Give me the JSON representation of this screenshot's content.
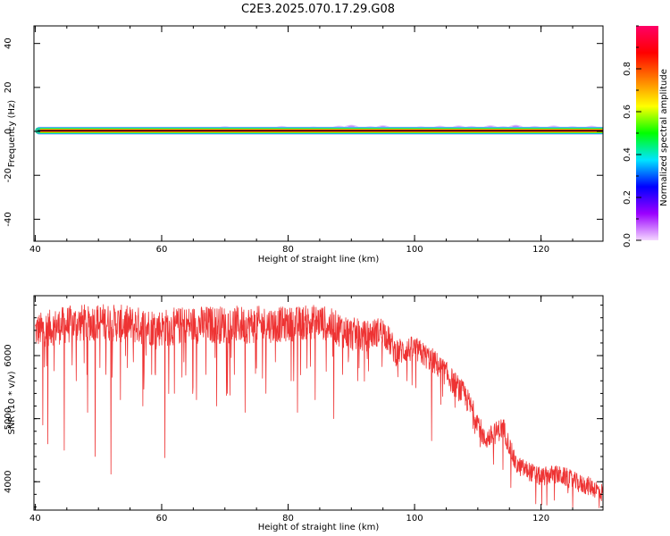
{
  "chart_data": [
    {
      "type": "heatmap",
      "title": "C2E3.2025.070.17.29.G08",
      "xlabel": "Height of straight line (km)",
      "ylabel": "Frequency (Hz)",
      "xlim": [
        39.8,
        129.8
      ],
      "ylim": [
        -50,
        48
      ],
      "xticks": [
        40,
        60,
        80,
        100,
        120
      ],
      "yticks": [
        -40,
        -20,
        0,
        20,
        40
      ],
      "ridge_frequency_hz": 0.3,
      "band_halfwidth_hz": 1.8,
      "noise_blobs": [
        {
          "x": 70,
          "y": 0.6,
          "level": 0.18
        },
        {
          "x": 79,
          "y": 0.7,
          "level": 0.2
        },
        {
          "x": 84,
          "y": 0.4,
          "level": 0.17
        },
        {
          "x": 88,
          "y": 0.8,
          "level": 0.25
        },
        {
          "x": 90,
          "y": 1.2,
          "level": 0.28
        },
        {
          "x": 93,
          "y": 0.6,
          "level": 0.22
        },
        {
          "x": 95,
          "y": 1.0,
          "level": 0.3
        },
        {
          "x": 101,
          "y": 0.5,
          "level": 0.2
        },
        {
          "x": 104,
          "y": 0.8,
          "level": 0.2
        },
        {
          "x": 107,
          "y": 0.9,
          "level": 0.25
        },
        {
          "x": 109,
          "y": 0.7,
          "level": 0.2
        },
        {
          "x": 112,
          "y": 1.0,
          "level": 0.26
        },
        {
          "x": 114,
          "y": 0.6,
          "level": 0.22
        },
        {
          "x": 116,
          "y": 1.2,
          "level": 0.32
        },
        {
          "x": 119,
          "y": 0.7,
          "level": 0.2
        },
        {
          "x": 122,
          "y": 0.9,
          "level": 0.22
        },
        {
          "x": 125,
          "y": 0.6,
          "level": 0.2
        },
        {
          "x": 128,
          "y": 0.8,
          "level": 0.24
        }
      ],
      "colorbar": {
        "label": "Normalized spectral amplitude",
        "range": [
          0,
          1
        ],
        "ticks": [
          0.0,
          0.2,
          0.4,
          0.6,
          0.8
        ],
        "stops": [
          "#f5d7ff",
          "#9b00ff",
          "#0000ff",
          "#00e5ff",
          "#00ff00",
          "#ffff00",
          "#ff7f00",
          "#ff0000",
          "#ff0066"
        ]
      }
    },
    {
      "type": "line",
      "xlabel": "Height of straight line (km)",
      "ylabel": "SNR (10 * v/v)",
      "xlim": [
        39.8,
        129.8
      ],
      "ylim": [
        3550,
        6950
      ],
      "xticks": [
        40,
        60,
        80,
        100,
        120
      ],
      "yticks": [
        4000,
        5000,
        6000
      ],
      "color": "#ee3333",
      "x": [
        40,
        45,
        50,
        55,
        60,
        65,
        70,
        75,
        80,
        85,
        90,
        92,
        95,
        97,
        100,
        103,
        105,
        108,
        110,
        111,
        112,
        114,
        116,
        118,
        120,
        122,
        124,
        126,
        128,
        129.8
      ],
      "y": [
        6450,
        6550,
        6600,
        6550,
        6500,
        6550,
        6550,
        6550,
        6550,
        6600,
        6400,
        6350,
        6450,
        6100,
        6150,
        5950,
        5750,
        5400,
        5000,
        4700,
        4750,
        4900,
        4300,
        4200,
        4100,
        4150,
        4100,
        4000,
        3950,
        3850
      ],
      "noise_amplitude": [
        550,
        600,
        600,
        600,
        600,
        600,
        600,
        600,
        550,
        550,
        550,
        500,
        450,
        450,
        400,
        400,
        400,
        400,
        350,
        350,
        350,
        350,
        300,
        300,
        300,
        300,
        300,
        300,
        300,
        300
      ],
      "dips": [
        {
          "x": 41.2,
          "y": 4900
        },
        {
          "x": 42.0,
          "y": 4600
        },
        {
          "x": 44.6,
          "y": 4500
        },
        {
          "x": 46.5,
          "y": 5600
        },
        {
          "x": 48.3,
          "y": 5100
        },
        {
          "x": 49.5,
          "y": 4400
        },
        {
          "x": 51.2,
          "y": 5700
        },
        {
          "x": 52.0,
          "y": 4120
        },
        {
          "x": 53.5,
          "y": 5300
        },
        {
          "x": 55.5,
          "y": 5900
        },
        {
          "x": 57.0,
          "y": 5200
        },
        {
          "x": 58.4,
          "y": 5700
        },
        {
          "x": 60.5,
          "y": 4380
        },
        {
          "x": 62.0,
          "y": 5400
        },
        {
          "x": 63.5,
          "y": 5900
        },
        {
          "x": 65.5,
          "y": 5300
        },
        {
          "x": 67.0,
          "y": 5700
        },
        {
          "x": 68.7,
          "y": 5200
        },
        {
          "x": 70.4,
          "y": 5400
        },
        {
          "x": 71.5,
          "y": 5700
        },
        {
          "x": 73.2,
          "y": 5100
        },
        {
          "x": 75.0,
          "y": 5800
        },
        {
          "x": 76.5,
          "y": 5400
        },
        {
          "x": 78.0,
          "y": 5900
        },
        {
          "x": 80.5,
          "y": 5600
        },
        {
          "x": 81.5,
          "y": 5100
        },
        {
          "x": 83.0,
          "y": 5800
        },
        {
          "x": 84.3,
          "y": 5300
        },
        {
          "x": 86.0,
          "y": 5750
        },
        {
          "x": 87.2,
          "y": 5000
        },
        {
          "x": 88.6,
          "y": 5700
        },
        {
          "x": 89.5,
          "y": 5900
        },
        {
          "x": 91.0,
          "y": 5600
        },
        {
          "x": 92.5,
          "y": 5950
        },
        {
          "x": 98.8,
          "y": 5600
        },
        {
          "x": 102.7,
          "y": 4650
        }
      ]
    }
  ]
}
